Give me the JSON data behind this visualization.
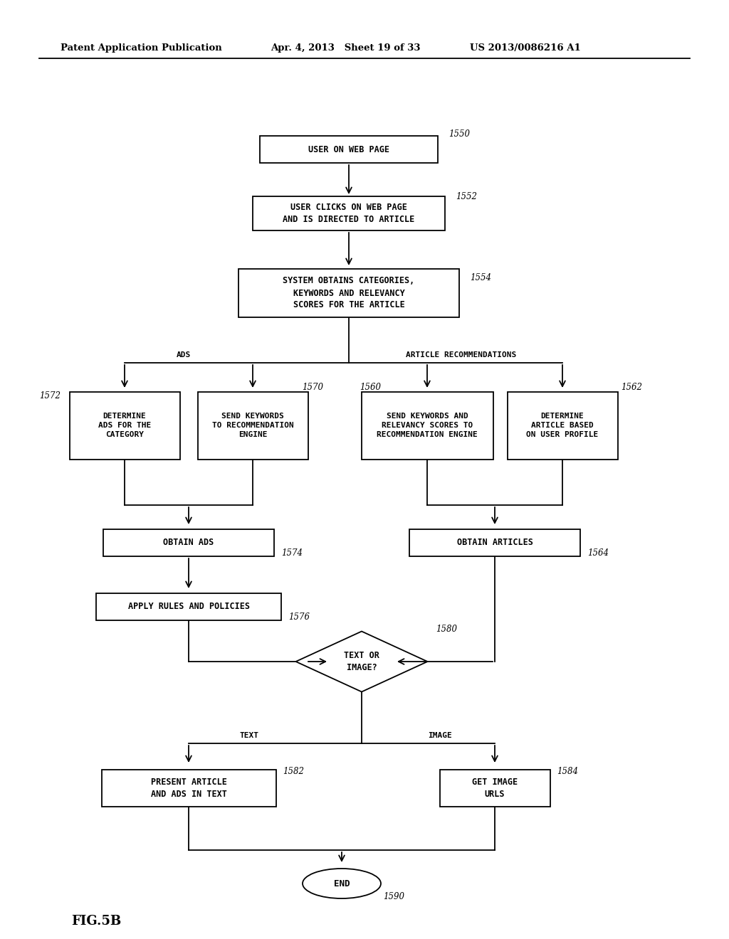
{
  "bg_color": "#ffffff",
  "header_left": "Patent Application Publication",
  "header_mid": "Apr. 4, 2013   Sheet 19 of 33",
  "header_right": "US 2013/0086216 A1",
  "figure_label": "FIG.5B",
  "box_1550": "USER ON WEB PAGE",
  "box_1552": "USER CLICKS ON WEB PAGE\nAND IS DIRECTED TO ARTICLE",
  "box_1554": "SYSTEM OBTAINS CATEGORIES,\nKEYWORDS AND RELEVANCY\nSCORES FOR THE ARTICLE",
  "box_1572": "DETERMINE\nADS FOR THE\nCATEGORY",
  "box_1570": "SEND KEYWORDS\nTO RECOMMENDATION\nENGINE",
  "box_1560": "SEND KEYWORDS AND\nRELEVANCY SCORES TO\nRECOMMENDATION ENGINE",
  "box_1562": "DETERMINE\nARTICLE BASED\nON USER PROFILE",
  "box_1574": "OBTAIN ADS",
  "box_1564": "OBTAIN ARTICLES",
  "box_1576": "APPLY RULES AND POLICIES",
  "box_1580": "TEXT OR\nIMAGE?",
  "box_1582": "PRESENT ARTICLE\nAND ADS IN TEXT",
  "box_1584": "GET IMAGE\nURLS",
  "box_1590": "END",
  "label_ads": "ADS",
  "label_article_rec": "ARTICLE RECOMMENDATIONS",
  "label_text": "TEXT",
  "label_image": "IMAGE"
}
